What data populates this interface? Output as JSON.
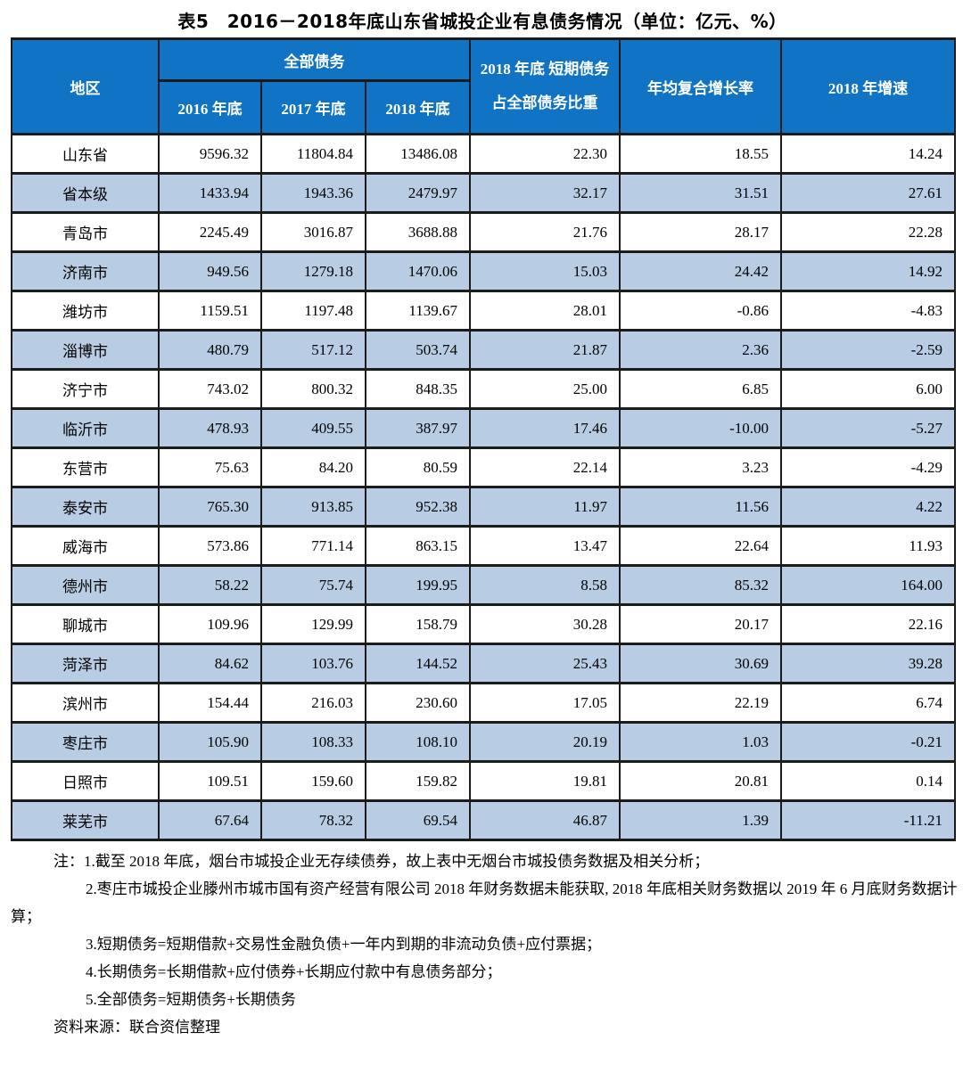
{
  "title": "表5　2016－2018年底山东省城投企业有息债务情况（单位：亿元、%）",
  "colors": {
    "header_bg": "#1173C4",
    "stripe_bg": "#B8CCE4",
    "border": "#1b1b1b"
  },
  "table": {
    "header": {
      "region": "地区",
      "total_debt_group": "全部债务",
      "sub_columns": [
        "2016 年底",
        "2017 年底",
        "2018 年底"
      ],
      "short_term_ratio": "2018 年底 短期债务占全部债务比重",
      "cagr": "年均复合增长率",
      "growth_2018": "2018 年增速"
    },
    "rows": [
      {
        "region": "山东省",
        "values": [
          "9596.32",
          "11804.84",
          "13486.08",
          "22.30",
          "18.55",
          "14.24"
        ]
      },
      {
        "region": "省本级",
        "values": [
          "1433.94",
          "1943.36",
          "2479.97",
          "32.17",
          "31.51",
          "27.61"
        ]
      },
      {
        "region": "青岛市",
        "values": [
          "2245.49",
          "3016.87",
          "3688.88",
          "21.76",
          "28.17",
          "22.28"
        ]
      },
      {
        "region": "济南市",
        "values": [
          "949.56",
          "1279.18",
          "1470.06",
          "15.03",
          "24.42",
          "14.92"
        ]
      },
      {
        "region": "潍坊市",
        "values": [
          "1159.51",
          "1197.48",
          "1139.67",
          "28.01",
          "-0.86",
          "-4.83"
        ]
      },
      {
        "region": "淄博市",
        "values": [
          "480.79",
          "517.12",
          "503.74",
          "21.87",
          "2.36",
          "-2.59"
        ]
      },
      {
        "region": "济宁市",
        "values": [
          "743.02",
          "800.32",
          "848.35",
          "25.00",
          "6.85",
          "6.00"
        ]
      },
      {
        "region": "临沂市",
        "values": [
          "478.93",
          "409.55",
          "387.97",
          "17.46",
          "-10.00",
          "-5.27"
        ]
      },
      {
        "region": "东营市",
        "values": [
          "75.63",
          "84.20",
          "80.59",
          "22.14",
          "3.23",
          "-4.29"
        ]
      },
      {
        "region": "泰安市",
        "values": [
          "765.30",
          "913.85",
          "952.38",
          "11.97",
          "11.56",
          "4.22"
        ]
      },
      {
        "region": "威海市",
        "values": [
          "573.86",
          "771.14",
          "863.15",
          "13.47",
          "22.64",
          "11.93"
        ]
      },
      {
        "region": "德州市",
        "values": [
          "58.22",
          "75.74",
          "199.95",
          "8.58",
          "85.32",
          "164.00"
        ]
      },
      {
        "region": "聊城市",
        "values": [
          "109.96",
          "129.99",
          "158.79",
          "30.28",
          "20.17",
          "22.16"
        ]
      },
      {
        "region": "菏泽市",
        "values": [
          "84.62",
          "103.76",
          "144.52",
          "25.43",
          "30.69",
          "39.28"
        ]
      },
      {
        "region": "滨州市",
        "values": [
          "154.44",
          "216.03",
          "230.60",
          "17.05",
          "22.19",
          "6.74"
        ]
      },
      {
        "region": "枣庄市",
        "values": [
          "105.90",
          "108.33",
          "108.10",
          "20.19",
          "1.03",
          "-0.21"
        ]
      },
      {
        "region": "日照市",
        "values": [
          "109.51",
          "159.60",
          "159.82",
          "19.81",
          "20.81",
          "0.14"
        ]
      },
      {
        "region": "莱芜市",
        "values": [
          "67.64",
          "78.32",
          "69.54",
          "46.87",
          "1.39",
          "-11.21"
        ]
      }
    ]
  },
  "notes": [
    {
      "text": "注：1.截至 2018 年底，烟台市城投企业无存续债券，故上表中无烟台市城投债务数据及相关分析；"
    },
    {
      "text": "2.枣庄市城投企业滕州市城市国有资产经营有限公司 2018 年财务数据未能获取, 2018 年底相关财务数据以 2019 年 6 月底财务数据计算；"
    },
    {
      "text": "3.短期债务=短期借款+交易性金融负债+一年内到期的非流动负债+应付票据；"
    },
    {
      "text": "4.长期债务=长期借款+应付债券+长期应付款中有息债务部分；"
    },
    {
      "text": "5.全部债务=短期债务+长期债务"
    }
  ],
  "source": "资料来源：联合资信整理"
}
